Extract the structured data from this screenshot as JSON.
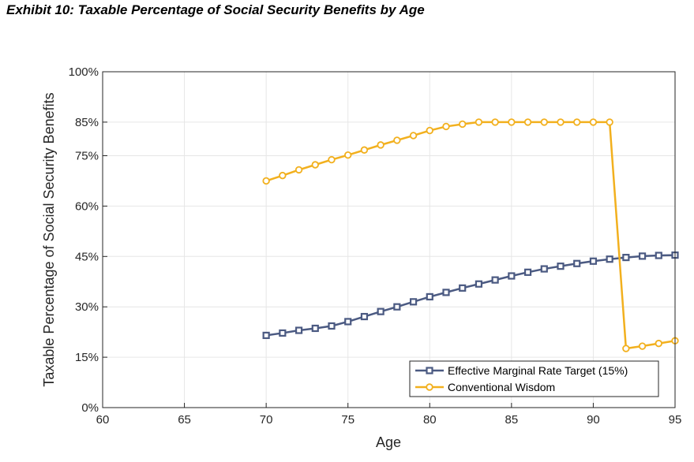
{
  "exhibit_title": "Exhibit 10: Taxable Percentage of Social Security Benefits by Age",
  "chart_data": {
    "type": "line",
    "xlabel": "Age",
    "ylabel": "Taxable Percentage of Social Security Benefits",
    "xlim": [
      60,
      95
    ],
    "ylim": [
      0,
      100
    ],
    "x_ticks": [
      60,
      65,
      70,
      75,
      80,
      85,
      90,
      95
    ],
    "x_tick_labels": [
      "60",
      "65",
      "70",
      "75",
      "80",
      "85",
      "90",
      "95"
    ],
    "y_ticks": [
      0,
      15,
      30,
      45,
      60,
      75,
      85,
      100
    ],
    "y_tick_labels": [
      "0%",
      "15%",
      "30%",
      "45%",
      "60%",
      "75%",
      "85%",
      "100%"
    ],
    "grid": true,
    "legend_position": "bottom-right",
    "x": [
      70,
      71,
      72,
      73,
      74,
      75,
      76,
      77,
      78,
      79,
      80,
      81,
      82,
      83,
      84,
      85,
      86,
      87,
      88,
      89,
      90,
      91,
      92,
      93,
      94,
      95
    ],
    "series": [
      {
        "name": "Effective Marginal Rate Target (15%)",
        "color": "#4b5a82",
        "marker": "square",
        "values": [
          21.5,
          22.2,
          23.0,
          23.6,
          24.3,
          25.6,
          27.1,
          28.6,
          30.0,
          31.5,
          33.0,
          34.3,
          35.6,
          36.8,
          38.0,
          39.2,
          40.3,
          41.3,
          42.1,
          42.9,
          43.6,
          44.2,
          44.7,
          45.1,
          45.3,
          45.4
        ]
      },
      {
        "name": "Conventional Wisdom",
        "color": "#f2b01e",
        "marker": "circle",
        "values": [
          67.5,
          69.1,
          70.8,
          72.3,
          73.8,
          75.2,
          76.7,
          78.2,
          79.6,
          81.0,
          82.5,
          83.7,
          84.4,
          85,
          85,
          85,
          85,
          85,
          85,
          85,
          85,
          85,
          17.6,
          18.3,
          19.1,
          19.9
        ]
      }
    ]
  }
}
